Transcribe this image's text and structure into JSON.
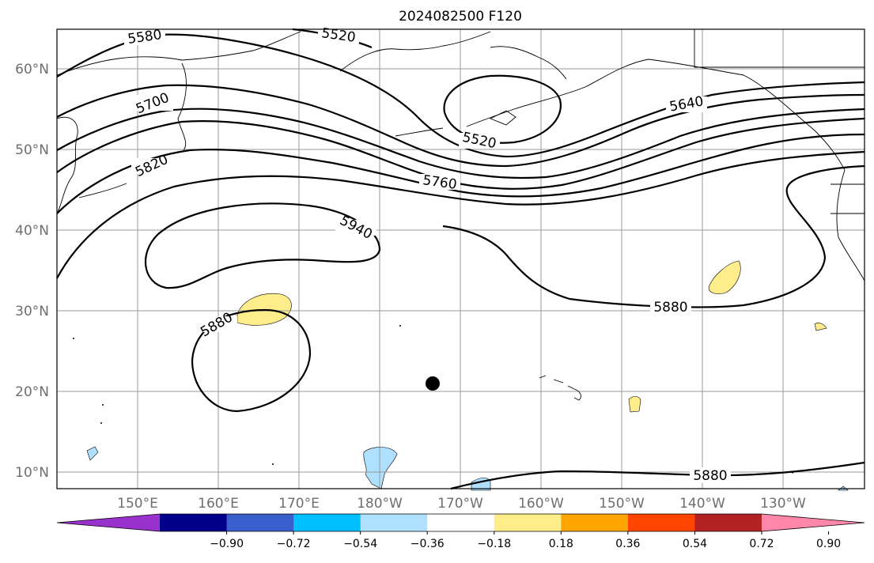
{
  "title": "2024082500 F120",
  "lat_labels": [
    "60°N",
    "50°N",
    "40°N",
    "30°N",
    "20°N",
    "10°N"
  ],
  "lon_labels": [
    "150°E",
    "160°E",
    "170°E",
    "180°W",
    "170°W",
    "160°W",
    "150°W",
    "140°W",
    "130°W"
  ],
  "contour_labels": [
    "5580",
    "5520",
    "5700",
    "5820",
    "5520",
    "5760",
    "5640",
    "5940",
    "5880",
    "5880",
    "5880"
  ],
  "colorbar": {
    "labels": [
      "−0.90",
      "−0.72",
      "−0.54",
      "−0.36",
      "−0.18",
      "0.18",
      "0.36",
      "0.54",
      "0.72",
      "0.90"
    ],
    "colors": [
      "#9932cc",
      "#00008b",
      "#3a5fcd",
      "#00bfff",
      "#afe0ff",
      "#ffffff",
      "#ffec8b",
      "#ffa500",
      "#ff4500",
      "#b22222",
      "#ff88aa"
    ]
  },
  "marker": "storm-center-dot"
}
